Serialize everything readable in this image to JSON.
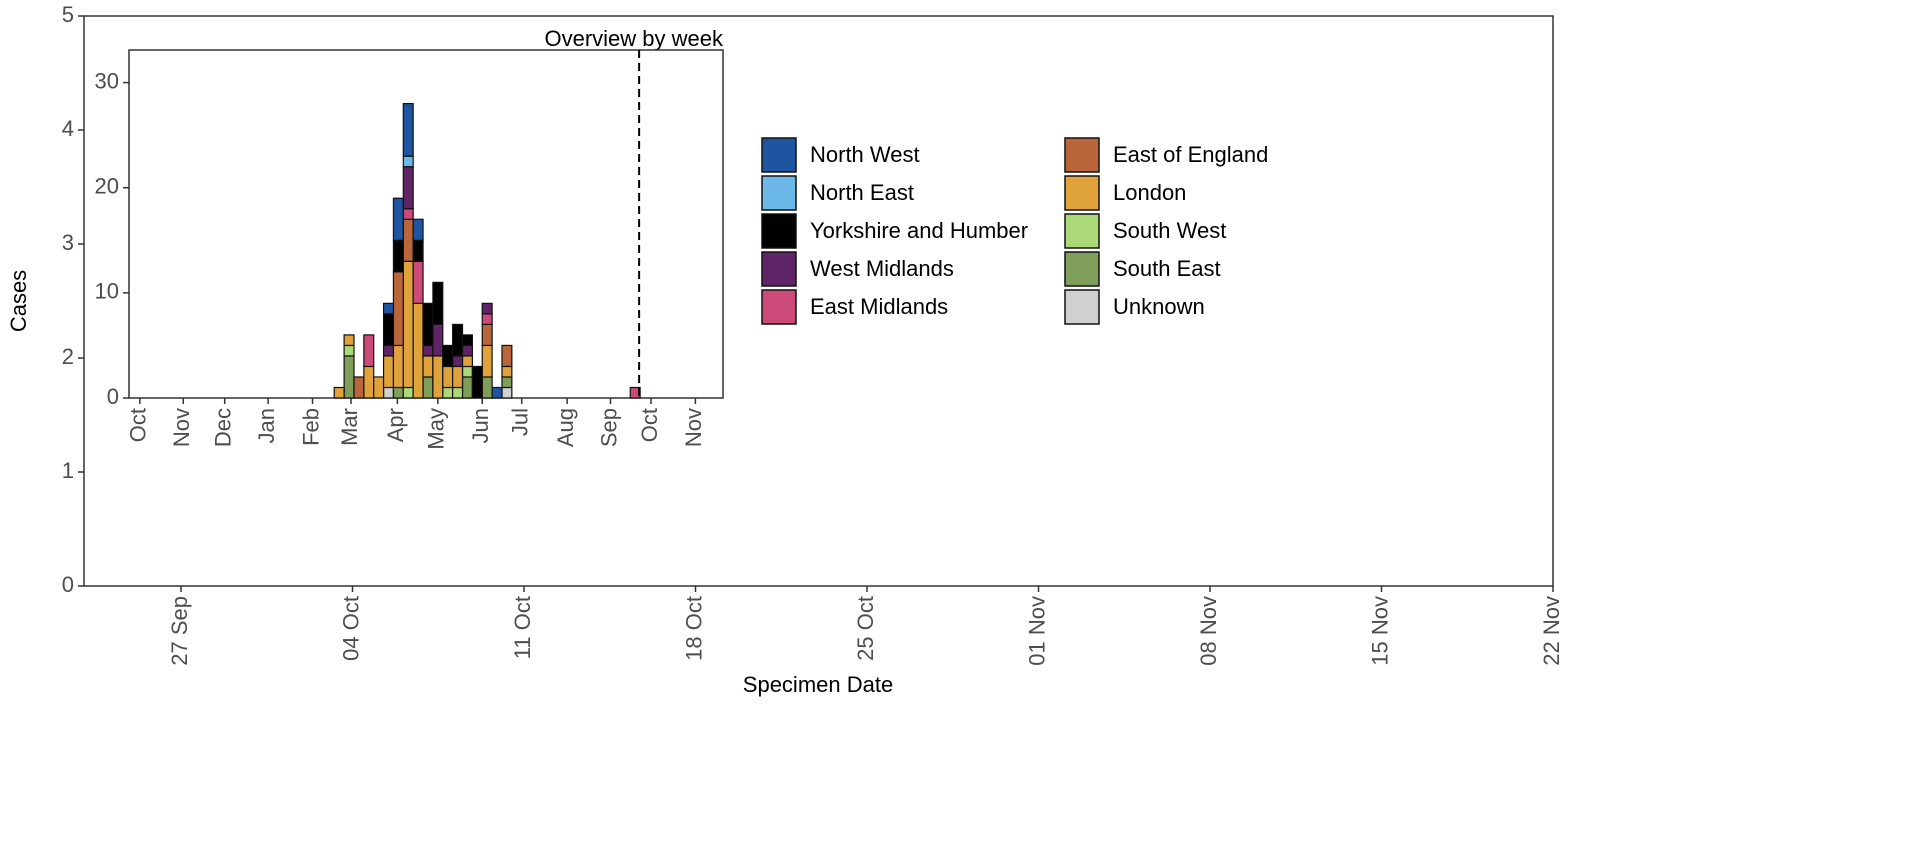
{
  "chart_data": [
    {
      "type": "bar",
      "xlabel": "Specimen Date",
      "ylabel": "Cases",
      "xlim": [
        -3.96,
        56
      ],
      "xticks": [
        {
          "value": 0,
          "label": "27 Sep"
        },
        {
          "value": 7,
          "label": "04 Oct"
        },
        {
          "value": 14,
          "label": "11 Oct"
        },
        {
          "value": 21,
          "label": "18 Oct"
        },
        {
          "value": 28,
          "label": "25 Oct"
        },
        {
          "value": 35,
          "label": "01 Nov"
        },
        {
          "value": 42,
          "label": "08 Nov"
        },
        {
          "value": 49,
          "label": "15 Nov"
        },
        {
          "value": 56,
          "label": "22 Nov"
        }
      ],
      "ylim": [
        0,
        5
      ],
      "yticks": [
        0,
        1,
        2,
        3,
        4,
        5
      ]
    },
    {
      "type": "bar",
      "stacked": true,
      "title": "Overview by week",
      "x": [
        0,
        1,
        2,
        3,
        4,
        5,
        6,
        7,
        8,
        9,
        10,
        11,
        12,
        13,
        14,
        15,
        16,
        17,
        30
      ],
      "xlim": [
        -21.3,
        38.9
      ],
      "xticks": [
        {
          "value": -20.2,
          "label": "Oct"
        },
        {
          "value": -15.8,
          "label": "Nov"
        },
        {
          "value": -11.6,
          "label": "Dec"
        },
        {
          "value": -7.2,
          "label": "Jan"
        },
        {
          "value": -2.7,
          "label": "Feb"
        },
        {
          "value": 1.2,
          "label": "Mar"
        },
        {
          "value": 5.9,
          "label": "Apr"
        },
        {
          "value": 10.0,
          "label": "May"
        },
        {
          "value": 14.5,
          "label": "Jun"
        },
        {
          "value": 18.5,
          "label": "Jul"
        },
        {
          "value": 23.1,
          "label": "Aug"
        },
        {
          "value": 27.5,
          "label": "Sep"
        },
        {
          "value": 31.6,
          "label": "Oct"
        },
        {
          "value": 36.1,
          "label": "Nov"
        }
      ],
      "ylim": [
        0,
        33.1
      ],
      "yticks": [
        0,
        10,
        20,
        30
      ],
      "vline": 30.4,
      "series": [
        {
          "name": "North West",
          "color": "#1f55a0",
          "values": [
            0,
            0,
            0,
            0,
            0,
            1,
            4,
            5,
            2,
            0,
            0,
            0,
            0,
            0,
            0,
            0,
            1,
            0,
            0
          ]
        },
        {
          "name": "North East",
          "color": "#6cb8e8",
          "values": [
            0,
            0,
            0,
            0,
            0,
            0,
            0,
            1,
            0,
            0,
            0,
            0,
            0,
            0,
            0,
            0,
            0,
            0,
            0
          ]
        },
        {
          "name": "Yorkshire and Humber",
          "color": "#000000",
          "values": [
            0,
            0,
            0,
            0,
            0,
            3,
            3,
            0,
            2,
            4,
            4,
            2,
            3,
            1,
            3,
            0,
            0,
            0,
            0
          ]
        },
        {
          "name": "West Midlands",
          "color": "#5e2465",
          "values": [
            0,
            0,
            0,
            0,
            0,
            1,
            0,
            4,
            0,
            1,
            3,
            0,
            1,
            1,
            0,
            1,
            0,
            0,
            0
          ]
        },
        {
          "name": "East Midlands",
          "color": "#cc4a79",
          "values": [
            0,
            0,
            0,
            3,
            0,
            0,
            0,
            1,
            4,
            0,
            0,
            0,
            0,
            0,
            0,
            1,
            0,
            0,
            1
          ]
        },
        {
          "name": "East of England",
          "color": "#b8663a",
          "values": [
            0,
            0,
            2,
            0,
            0,
            0,
            7,
            4,
            0,
            0,
            0,
            0,
            0,
            0,
            0,
            2,
            0,
            2,
            0
          ]
        },
        {
          "name": "London",
          "color": "#e0a23a",
          "values": [
            1,
            1,
            0,
            3,
            2,
            3,
            4,
            12,
            9,
            2,
            4,
            2,
            2,
            1,
            0,
            3,
            0,
            1,
            0
          ]
        },
        {
          "name": "South West",
          "color": "#abd978",
          "values": [
            0,
            1,
            0,
            0,
            0,
            0,
            0,
            1,
            0,
            0,
            0,
            1,
            1,
            1,
            0,
            0,
            0,
            0,
            0
          ]
        },
        {
          "name": "South East",
          "color": "#7f9e5a",
          "values": [
            0,
            4,
            0,
            0,
            0,
            0,
            1,
            0,
            0,
            2,
            0,
            0,
            0,
            2,
            0,
            2,
            0,
            1,
            0
          ]
        },
        {
          "name": "Unknown",
          "color": "#d0d0d0",
          "values": [
            0,
            0,
            0,
            0,
            0,
            1,
            0,
            0,
            0,
            0,
            0,
            0,
            0,
            0,
            0,
            0,
            0,
            1,
            0
          ]
        }
      ]
    }
  ]
}
